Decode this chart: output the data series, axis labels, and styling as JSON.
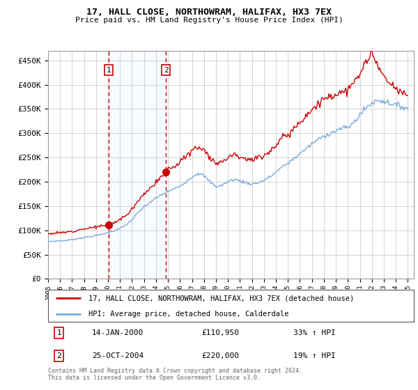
{
  "title": "17, HALL CLOSE, NORTHOWRAM, HALIFAX, HX3 7EX",
  "subtitle": "Price paid vs. HM Land Registry's House Price Index (HPI)",
  "background_color": "#ffffff",
  "grid_color": "#cccccc",
  "legend_line1": "17, HALL CLOSE, NORTHOWRAM, HALIFAX, HX3 7EX (detached house)",
  "legend_line2": "HPI: Average price, detached house, Calderdale",
  "transaction1_date": "14-JAN-2000",
  "transaction1_price": "£110,950",
  "transaction1_hpi": "33% ↑ HPI",
  "transaction2_date": "25-OCT-2004",
  "transaction2_price": "£220,000",
  "transaction2_hpi": "19% ↑ HPI",
  "footnote": "Contains HM Land Registry data © Crown copyright and database right 2024.\nThis data is licensed under the Open Government Licence v3.0.",
  "hpi_color": "#7aaadd",
  "price_color": "#cc0000",
  "marker_color": "#cc0000",
  "vline_color": "#cc0000",
  "shade_color": "#ddeeff",
  "ylim": [
    0,
    470000
  ],
  "yticks": [
    0,
    50000,
    100000,
    150000,
    200000,
    250000,
    300000,
    350000,
    400000,
    450000
  ],
  "year_start": 1995,
  "year_end": 2025,
  "transaction1_year": 2000.04,
  "transaction2_year": 2004.82
}
